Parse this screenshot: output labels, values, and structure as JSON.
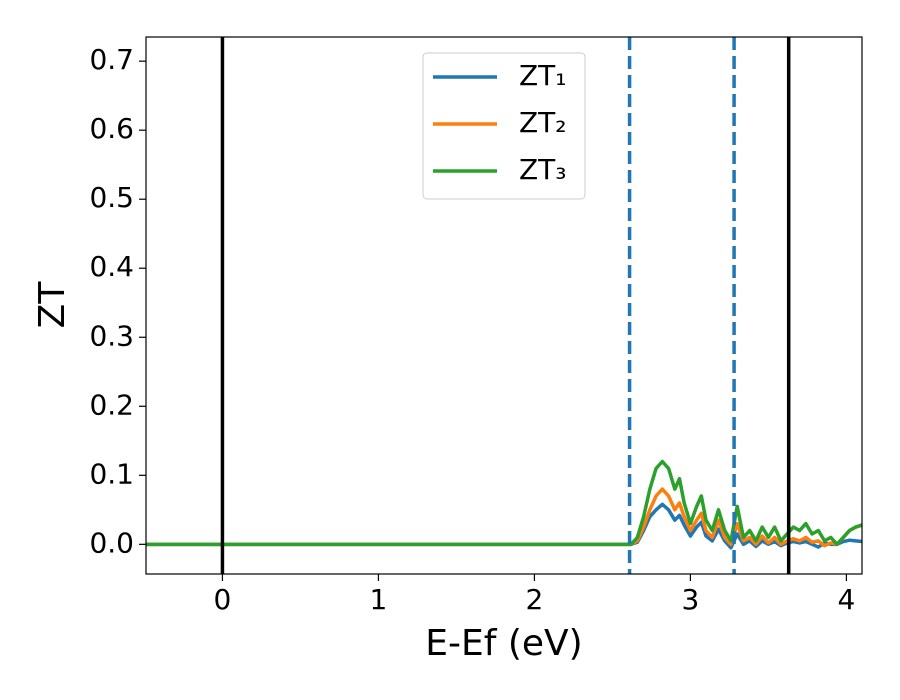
{
  "chart_data": {
    "type": "line",
    "x_label": "E-Ef (eV)",
    "y_label": "ZT",
    "x": [
      -0.49,
      2.58,
      2.62,
      2.66,
      2.7,
      2.74,
      2.78,
      2.82,
      2.86,
      2.9,
      2.93,
      2.96,
      3.0,
      3.04,
      3.07,
      3.1,
      3.14,
      3.18,
      3.22,
      3.26,
      3.3,
      3.34,
      3.38,
      3.42,
      3.46,
      3.5,
      3.54,
      3.58,
      3.62,
      3.66,
      3.7,
      3.74,
      3.78,
      3.82,
      3.86,
      3.9,
      3.94,
      3.98,
      4.02,
      4.06,
      4.1
    ],
    "series": [
      {
        "name": "ZT₁",
        "color": "#1f77b4",
        "values": [
          0,
          0,
          0,
          0.003,
          0.02,
          0.04,
          0.05,
          0.058,
          0.05,
          0.035,
          0.042,
          0.028,
          0.012,
          0.025,
          0.032,
          0.012,
          0.005,
          0.022,
          0.005,
          -0.005,
          0.015,
          0,
          0.005,
          -0.003,
          0.005,
          0,
          0.004,
          -0.002,
          0.002,
          0.004,
          0.002,
          0.004,
          0,
          -0.004,
          0.002,
          0,
          0,
          0.004,
          0.006,
          0.005,
          0.004
        ]
      },
      {
        "name": "ZT₂",
        "color": "#ff7f0e",
        "values": [
          0,
          0,
          0,
          0.005,
          0.025,
          0.05,
          0.07,
          0.08,
          0.07,
          0.05,
          0.06,
          0.04,
          0.02,
          0.035,
          0.045,
          0.02,
          0.01,
          0.035,
          0.01,
          0,
          0.03,
          0.005,
          0.01,
          0,
          0.012,
          0.002,
          0.01,
          0,
          0.005,
          0.008,
          0.005,
          0.01,
          0.003,
          0.005,
          -0.002,
          0.002,
          0,
          0.01,
          0.02,
          0.025,
          0.028
        ]
      },
      {
        "name": "ZT₃",
        "color": "#2ca02c",
        "values": [
          0,
          0,
          0,
          0.01,
          0.04,
          0.08,
          0.11,
          0.12,
          0.11,
          0.08,
          0.095,
          0.06,
          0.03,
          0.055,
          0.07,
          0.035,
          0.02,
          0.05,
          0.02,
          0.005,
          0.055,
          0.01,
          0.02,
          0.005,
          0.025,
          0.01,
          0.025,
          0.005,
          0.015,
          0.025,
          0.02,
          0.03,
          0.015,
          0.02,
          0.005,
          0.01,
          0,
          0.01,
          0.02,
          0.025,
          0.028
        ]
      }
    ],
    "vlines": [
      {
        "x": 0,
        "color": "#000000",
        "style": "solid"
      },
      {
        "x": 3.63,
        "color": "#000000",
        "style": "solid"
      },
      {
        "x": 2.61,
        "color": "#1f77b4",
        "style": "dashed"
      },
      {
        "x": 3.28,
        "color": "#1f77b4",
        "style": "dashed"
      }
    ],
    "xlim": [
      -0.49,
      4.1
    ],
    "ylim": [
      -0.043,
      0.735
    ],
    "xticks": [
      0,
      1,
      2,
      3,
      4
    ],
    "yticks": [
      0.0,
      0.1,
      0.2,
      0.3,
      0.4,
      0.5,
      0.6,
      0.7
    ],
    "legend": "upper center",
    "grid": false
  }
}
